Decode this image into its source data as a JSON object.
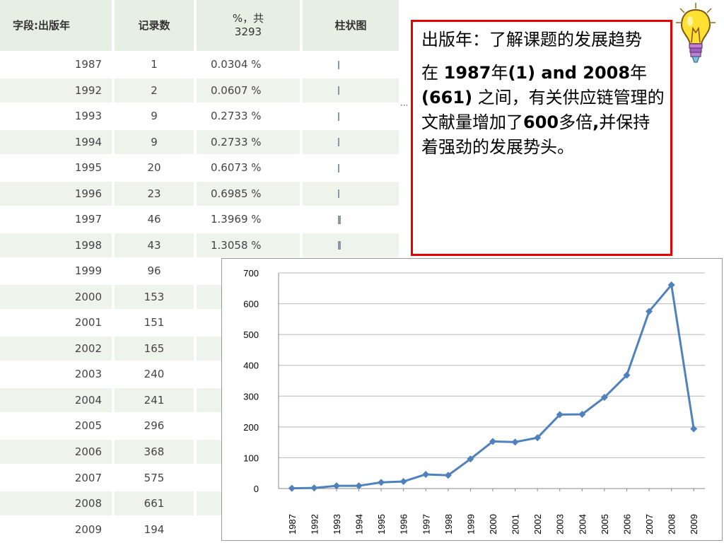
{
  "table": {
    "headers": [
      "字段:出版年",
      "记录数",
      "%，共3293",
      "柱状图"
    ],
    "rows": [
      {
        "year": "1987",
        "count": "1",
        "pct": "0.0304 %",
        "bar": 0.0015
      },
      {
        "year": "1992",
        "count": "2",
        "pct": "0.0607 %",
        "bar": 0.003
      },
      {
        "year": "1993",
        "count": "9",
        "pct": "0.2733 %",
        "bar": 0.014
      },
      {
        "year": "1994",
        "count": "9",
        "pct": "0.2733 %",
        "bar": 0.014
      },
      {
        "year": "1995",
        "count": "20",
        "pct": "0.6073 %",
        "bar": 0.03
      },
      {
        "year": "1996",
        "count": "23",
        "pct": "0.6985 %",
        "bar": 0.035
      },
      {
        "year": "1997",
        "count": "46",
        "pct": "1.3969 %",
        "bar": 0.07
      },
      {
        "year": "1998",
        "count": "43",
        "pct": "1.3058 %",
        "bar": 0.065
      },
      {
        "year": "1999",
        "count": "96"
      },
      {
        "year": "2000",
        "count": "153"
      },
      {
        "year": "2001",
        "count": "151"
      },
      {
        "year": "2002",
        "count": "165"
      },
      {
        "year": "2003",
        "count": "240"
      },
      {
        "year": "2004",
        "count": "241"
      },
      {
        "year": "2005",
        "count": "296"
      },
      {
        "year": "2006",
        "count": "368"
      },
      {
        "year": "2007",
        "count": "575"
      },
      {
        "year": "2008",
        "count": "661"
      },
      {
        "year": "2009",
        "count": "194"
      }
    ],
    "overflow_marker": "···"
  },
  "info": {
    "title": "出版年：了解课题的发展趋势",
    "body_parts": [
      {
        "text": "在 ",
        "bold": false
      },
      {
        "text": "1987",
        "bold": true
      },
      {
        "text": "年",
        "bold": false
      },
      {
        "text": "(1) and 2008",
        "bold": true
      },
      {
        "text": "年",
        "bold": false
      },
      {
        "text": "(661)",
        "bold": true
      },
      {
        "text": " 之间，有关供应链管理的文献量增加了",
        "bold": false
      },
      {
        "text": "600",
        "bold": true
      },
      {
        "text": "多倍",
        "bold": false
      },
      {
        "text": ",",
        "bold": true
      },
      {
        "text": "并保持着强劲的发展势头。",
        "bold": false
      }
    ],
    "border_color": "#e60000"
  },
  "decoration": {
    "icon": "lightbulb-icon"
  },
  "chart_data": {
    "type": "line",
    "title": "",
    "xlabel": "",
    "ylabel": "",
    "categories": [
      "1987",
      "1992",
      "1993",
      "1994",
      "1995",
      "1996",
      "1997",
      "1998",
      "1999",
      "2000",
      "2001",
      "2002",
      "2003",
      "2004",
      "2005",
      "2006",
      "2007",
      "2008",
      "2009"
    ],
    "series": [
      {
        "values": [
          1,
          2,
          9,
          9,
          20,
          23,
          46,
          43,
          96,
          153,
          151,
          165,
          240,
          241,
          296,
          368,
          575,
          661,
          194
        ],
        "color": "#4f81bd"
      }
    ],
    "ylim": [
      0,
      700
    ],
    "yticks": [
      0,
      100,
      200,
      300,
      400,
      500,
      600,
      700
    ],
    "grid": true,
    "legend": "none",
    "marker": "diamond"
  }
}
